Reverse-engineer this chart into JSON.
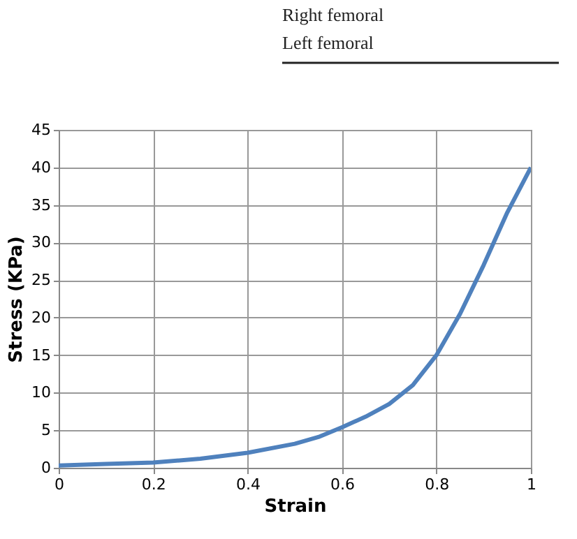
{
  "chart_data": {
    "type": "line",
    "xlabel": "Strain",
    "ylabel": "Stress (KPa)",
    "annotations": [
      "Right femoral",
      "Left femoral"
    ],
    "x": [
      0,
      0.1,
      0.2,
      0.3,
      0.4,
      0.5,
      0.55,
      0.6,
      0.65,
      0.7,
      0.75,
      0.8,
      0.85,
      0.9,
      0.95,
      1.0
    ],
    "series": [
      {
        "color": "#4f81bd",
        "values": [
          0.3,
          0.5,
          0.7,
          1.2,
          2.0,
          3.2,
          4.1,
          5.4,
          6.8,
          8.5,
          11,
          15,
          20.5,
          27,
          34,
          40
        ]
      }
    ],
    "xlim": [
      0,
      1
    ],
    "xticks": [
      0,
      0.2,
      0.4,
      0.6,
      0.8,
      1
    ],
    "ylim": [
      0,
      45
    ],
    "yticks": [
      0,
      5,
      10,
      15,
      20,
      25,
      30,
      35,
      40,
      45
    ],
    "grid": true,
    "marker": "none",
    "line_style": "solid"
  }
}
